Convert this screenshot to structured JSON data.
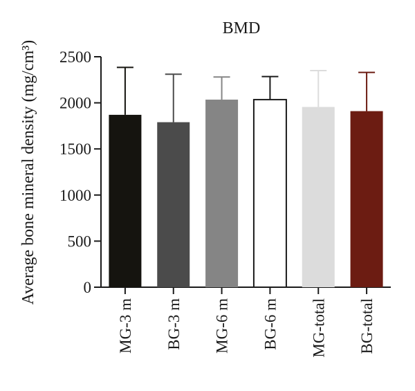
{
  "chart_data": {
    "type": "bar",
    "title": "BMD",
    "ylabel": "Average bone mineral density (mg/cm³)",
    "xlabel": "",
    "ylim": [
      0,
      2500
    ],
    "yticks": [
      0,
      500,
      1000,
      1500,
      2000,
      2500
    ],
    "categories": [
      "MG-3 m",
      "BG-3 m",
      "MG-6 m",
      "BG-6 m",
      "MG-total",
      "BG-total"
    ],
    "values": [
      1870,
      1790,
      2035,
      2035,
      1955,
      1910
    ],
    "error_upper": [
      2385,
      2310,
      2280,
      2285,
      2350,
      2330
    ],
    "colors": [
      "#15140f",
      "#4b4b4b",
      "#858585",
      "#ffffff",
      "#dcdcdc",
      "#6c1c12"
    ],
    "error_colors": [
      "#15140f",
      "#4b4b4b",
      "#858585",
      "#1a1a1a",
      "#dcdcdc",
      "#6c1c12"
    ],
    "grid": false,
    "legend": "none"
  }
}
